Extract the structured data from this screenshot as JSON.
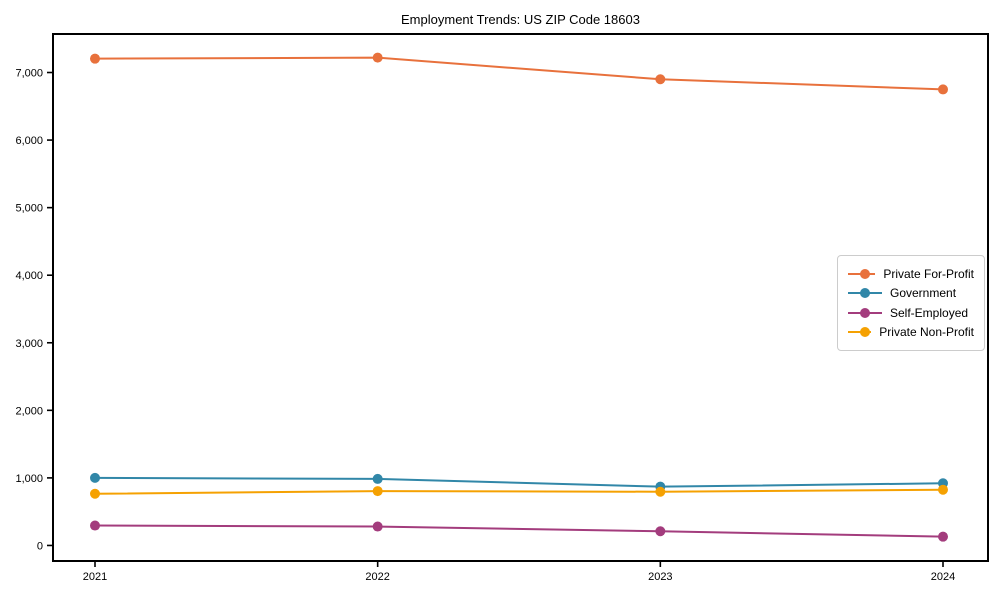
{
  "chart_data": {
    "type": "line",
    "title": "Employment Trends: US ZIP Code 18603",
    "xlabel": "",
    "ylabel": "",
    "x": [
      "2021",
      "2022",
      "2023",
      "2024"
    ],
    "series": [
      {
        "name": "Private For-Profit",
        "color": "#E8713C",
        "values": [
          7205,
          7220,
          6900,
          6750
        ]
      },
      {
        "name": "Government",
        "color": "#3187A8",
        "values": [
          1000,
          985,
          870,
          920
        ]
      },
      {
        "name": "Self-Employed",
        "color": "#A33C7D",
        "values": [
          295,
          280,
          210,
          130
        ]
      },
      {
        "name": "Private Non-Profit",
        "color": "#F5A102",
        "values": [
          765,
          805,
          795,
          825
        ]
      }
    ],
    "ylim": [
      -230,
      7570
    ],
    "yticks": [
      0,
      1000,
      2000,
      3000,
      4000,
      5000,
      6000,
      7000
    ],
    "ytick_labels": [
      "0",
      "1,000",
      "2,000",
      "3,000",
      "4,000",
      "5,000",
      "6,000",
      "7,000"
    ],
    "grid": false,
    "legend_position": "center-right",
    "axis_color": "#000000",
    "background_color": "#ffffff",
    "marker": "circle",
    "marker_radius": 5,
    "line_width": 2
  }
}
